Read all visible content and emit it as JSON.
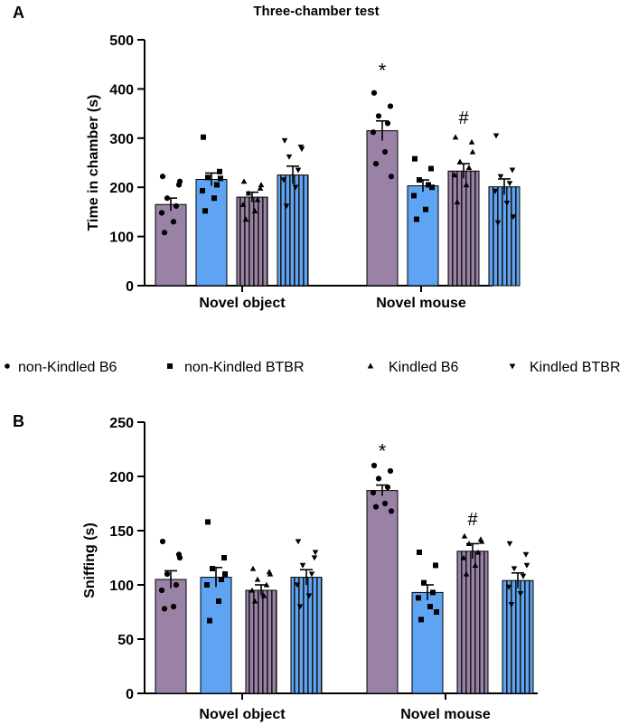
{
  "colors": {
    "purple": "#9a82a6",
    "blue": "#5ea4f2",
    "stripe_dark": "#1a1a1a",
    "axis": "#000000"
  },
  "legend": {
    "items": [
      {
        "label": "non-Kindled B6",
        "marker": "circle"
      },
      {
        "label": "non-Kindled BTBR",
        "marker": "square"
      },
      {
        "label": "Kindled B6",
        "marker": "triangle-up"
      },
      {
        "label": "Kindled BTBR",
        "marker": "triangle-down"
      }
    ]
  },
  "chart_data": [
    {
      "panel_label": "A",
      "type": "bar",
      "title": "Three-chamber test",
      "ylabel": "Time in chamber (s)",
      "xlabel": "",
      "ylim": [
        0,
        500
      ],
      "yticks": [
        0,
        100,
        200,
        300,
        400,
        500
      ],
      "ytick_labels": [
        "0",
        "100",
        "200",
        "300",
        "400",
        "500"
      ],
      "categories": [
        "Novel object",
        "Novel mouse"
      ],
      "series": [
        {
          "name": "non-Kindled B6",
          "style": "purple",
          "marker": "circle",
          "values": [
            165,
            315
          ],
          "sem": [
            13,
            20
          ],
          "points": [
            [
              222,
              205,
              178,
              162,
              148,
              130,
              108,
              212
            ],
            [
              392,
              365,
              345,
              330,
              312,
              272,
              248,
              222
            ]
          ]
        },
        {
          "name": "non-Kindled BTBR",
          "style": "blue",
          "marker": "square",
          "values": [
            216,
            203
          ],
          "sem": [
            13,
            12
          ],
          "points": [
            [
              302,
              232,
              220,
              205,
              193,
              178,
              152,
              218
            ],
            [
              258,
              238,
              215,
              205,
              183,
              155,
              135,
              200
            ]
          ]
        },
        {
          "name": "Kindled B6",
          "style": "purple-striped",
          "marker": "triangle-up",
          "values": [
            180,
            233
          ],
          "sem": [
            10,
            15
          ],
          "points": [
            [
              212,
              198,
              188,
              175,
              165,
              152,
              135,
              205
            ],
            [
              302,
              292,
              252,
              240,
              225,
              205,
              170,
              272
            ]
          ]
        },
        {
          "name": "Kindled BTBR",
          "style": "blue-striped",
          "marker": "triangle-down",
          "values": [
            225,
            201
          ],
          "sem": [
            18,
            16
          ],
          "points": [
            [
              295,
              282,
              262,
              235,
              215,
              200,
              162,
              278
            ],
            [
              305,
              235,
              222,
              208,
              192,
              168,
              128,
              140
            ]
          ]
        }
      ],
      "annotations": [
        {
          "text": "*",
          "series": 0,
          "category": 1,
          "y": 435
        },
        {
          "text": "#",
          "series": 2,
          "category": 1,
          "y": 340
        }
      ]
    },
    {
      "panel_label": "B",
      "type": "bar",
      "title": "",
      "ylabel": "Sniffing (s)",
      "xlabel": "",
      "ylim": [
        0,
        250
      ],
      "yticks": [
        0,
        50,
        100,
        150,
        200,
        250
      ],
      "ytick_labels": [
        "0",
        "50",
        "100",
        "150",
        "200",
        "250"
      ],
      "categories": [
        "Novel object",
        "Novel mouse"
      ],
      "series": [
        {
          "name": "non-Kindled B6",
          "style": "purple",
          "marker": "circle",
          "values": [
            105,
            187
          ],
          "sem": [
            8,
            5
          ],
          "points": [
            [
              140,
              128,
              110,
              100,
              95,
              80,
              78,
              125
            ],
            [
              210,
              205,
              198,
              190,
              185,
              175,
              172,
              168
            ]
          ]
        },
        {
          "name": "non-Kindled BTBR",
          "style": "blue",
          "marker": "square",
          "values": [
            107,
            93
          ],
          "sem": [
            9,
            7
          ],
          "points": [
            [
              158,
              125,
              115,
              105,
              100,
              85,
              67,
              110
            ],
            [
              130,
              118,
              102,
              93,
              88,
              80,
              68,
              75
            ]
          ]
        },
        {
          "name": "Kindled B6",
          "style": "purple-striped",
          "marker": "triangle-up",
          "values": [
            95,
            131
          ],
          "sem": [
            5,
            7
          ],
          "points": [
            [
              115,
              112,
              105,
              100,
              95,
              90,
              85,
              110
            ],
            [
              145,
              142,
              138,
              130,
              125,
              118,
              110,
              140
            ]
          ]
        },
        {
          "name": "Kindled BTBR",
          "style": "blue-striped",
          "marker": "triangle-down",
          "values": [
            107,
            104
          ],
          "sem": [
            7,
            7
          ],
          "points": [
            [
              140,
              125,
              118,
              110,
              100,
              90,
              80,
              130
            ],
            [
              138,
              128,
              115,
              108,
              98,
              92,
              82,
              118
            ]
          ]
        }
      ],
      "annotations": [
        {
          "text": "*",
          "series": 0,
          "category": 1,
          "y": 222
        },
        {
          "text": "#",
          "series": 2,
          "category": 1,
          "y": 160
        }
      ]
    }
  ]
}
